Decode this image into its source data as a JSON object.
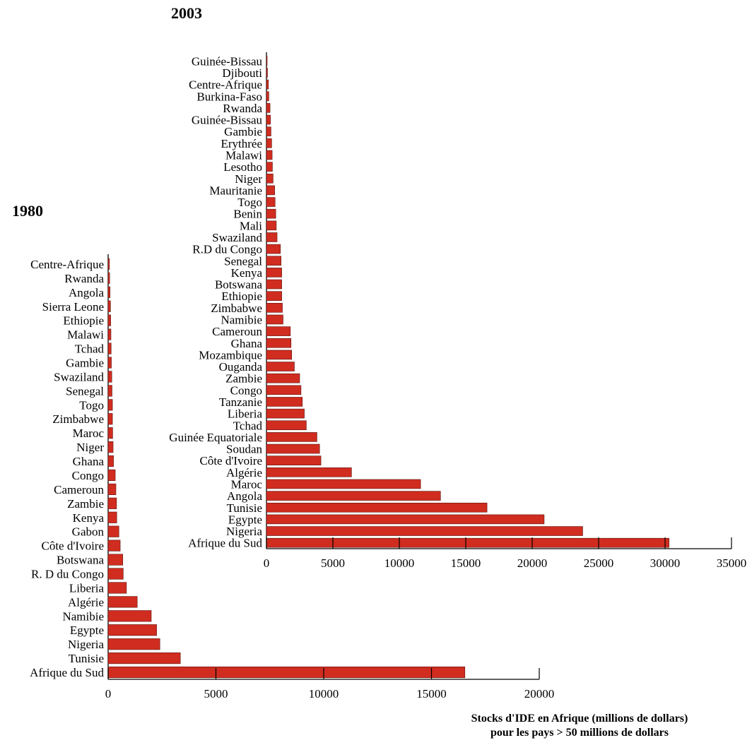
{
  "chart_data": [
    {
      "type": "bar",
      "orientation": "horizontal",
      "title": "2003",
      "categories": [
        "Guinée-Bissau",
        "Djibouti",
        "Centre-Afrique",
        "Burkina-Faso",
        "Rwanda",
        "Guinée-Bissau",
        "Gambie",
        "Erythrée",
        "Malawi",
        "Lesotho",
        "Niger",
        "Mauritanie",
        "Togo",
        "Benin",
        "Mali",
        "Swaziland",
        "R.D du Congo",
        "Senegal",
        "Kenya",
        "Botswana",
        "Ethiopie",
        "Zimbabwe",
        "Namibie",
        "Cameroun",
        "Ghana",
        "Mozambique",
        "Ouganda",
        "Zambie",
        "Congo",
        "Tanzanie",
        "Liberia",
        "Tchad",
        "Guinée Equatoriale",
        "Soudan",
        "Côte d'Ivoire",
        "Algérie",
        "Maroc",
        "Angola",
        "Tunisie",
        "Egypte",
        "Nigeria",
        "Afrique du Sud"
      ],
      "values": [
        50,
        80,
        150,
        180,
        270,
        300,
        340,
        390,
        430,
        450,
        500,
        620,
        650,
        700,
        740,
        800,
        1050,
        1100,
        1150,
        1150,
        1150,
        1200,
        1250,
        1800,
        1850,
        1900,
        2100,
        2500,
        2600,
        2700,
        2850,
        3000,
        3800,
        4000,
        4100,
        6400,
        11600,
        13100,
        16600,
        20900,
        23800,
        30300
      ],
      "xlim": [
        0,
        35000
      ],
      "xticks": [
        0,
        5000,
        10000,
        15000,
        20000,
        25000,
        30000,
        35000
      ],
      "xlabel": "",
      "ylabel": "",
      "color": "#d02c1f"
    },
    {
      "type": "bar",
      "orientation": "horizontal",
      "title": "1980",
      "categories": [
        "Centre-Afrique",
        "Rwanda",
        "Angola",
        "Sierra Leone",
        "Ethiopie",
        "Malawi",
        "Tchad",
        "Gambie",
        "Swaziland",
        "Senegal",
        "Togo",
        "Zimbabwe",
        "Maroc",
        "Niger",
        "Ghana",
        "Congo",
        "Cameroun",
        "Zambie",
        "Kenya",
        "Gabon",
        "Côte d'Ivoire",
        "Botswana",
        "R. D du Congo",
        "Liberia",
        "Algérie",
        "Namibie",
        "Egypte",
        "Nigeria",
        "Tunisie",
        "Afrique du Sud"
      ],
      "values": [
        60,
        70,
        90,
        110,
        120,
        130,
        140,
        150,
        170,
        180,
        200,
        200,
        210,
        230,
        250,
        330,
        360,
        390,
        400,
        500,
        560,
        680,
        700,
        850,
        1350,
        2000,
        2250,
        2400,
        3350,
        16550
      ],
      "xlim": [
        0,
        20000
      ],
      "xticks": [
        0,
        5000,
        10000,
        15000,
        20000
      ],
      "xlabel": "",
      "ylabel": "",
      "color": "#d02c1f"
    }
  ],
  "caption": {
    "line1": "Stocks d'IDE en Afrique (millions de dollars)",
    "line2": "pour les pays > 50 millions de dollars"
  }
}
